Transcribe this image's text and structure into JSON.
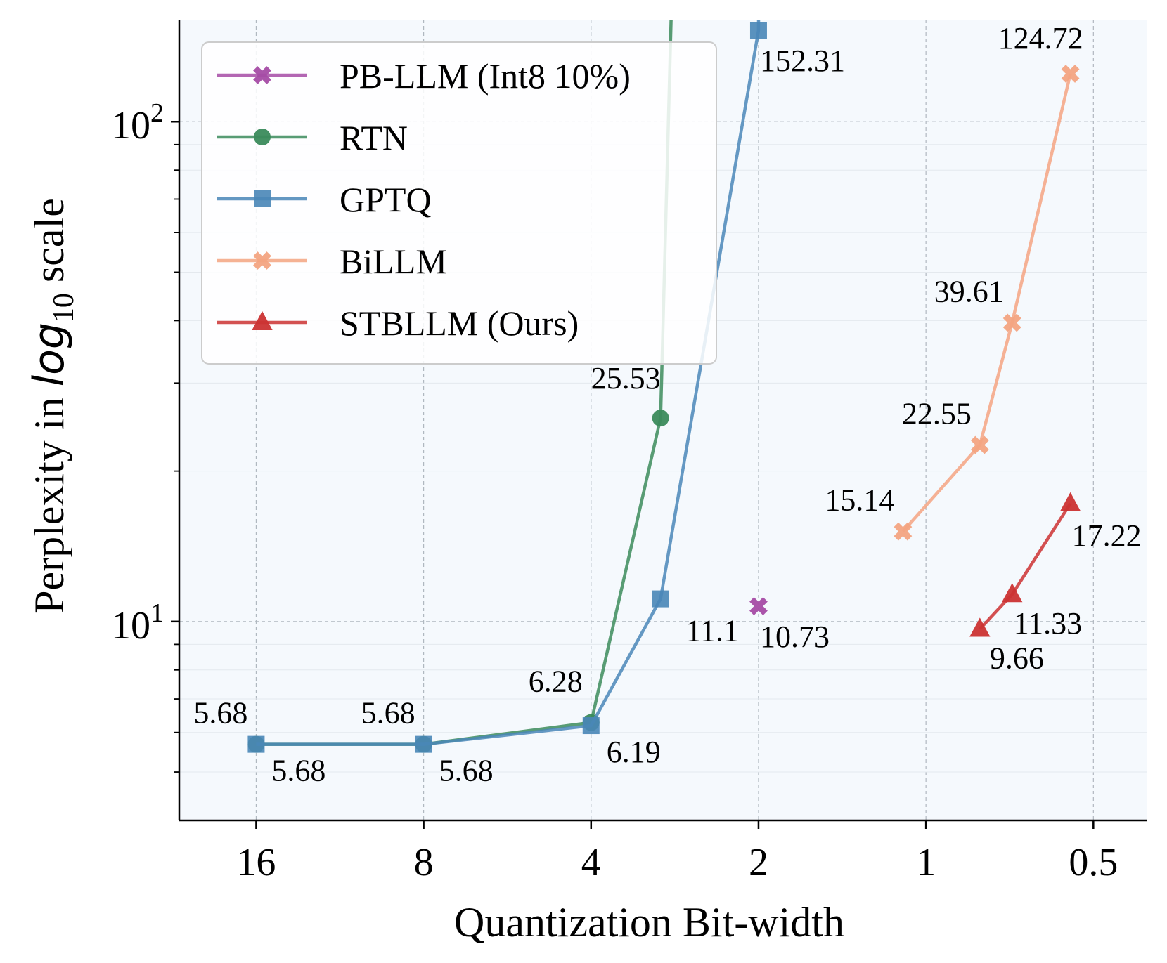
{
  "chart_data": {
    "type": "line",
    "xlabel": "Quantization Bit-width",
    "ylabel_prefix": "Perplexity in ",
    "ylabel_log": "log",
    "ylabel_sub": "10",
    "ylabel_suffix": " scale",
    "x_scale": "log2",
    "y_scale": "log10",
    "x_inverted": true,
    "xlim": [
      22,
      0.4
    ],
    "ylim": [
      4,
      160
    ],
    "x_ticks": [
      16,
      8,
      4,
      2,
      1,
      0.5
    ],
    "x_tick_labels": [
      "16",
      "8",
      "4",
      "2",
      "1",
      "0.5"
    ],
    "y_major_ticks": [
      10,
      100
    ],
    "y_tick_labels": [
      {
        "base": "10",
        "exp": "1"
      },
      {
        "base": "10",
        "exp": "2"
      }
    ],
    "grid": true,
    "background": "#f5f9fd",
    "legend_position": "top-left",
    "series": [
      {
        "name": "PB-LLM (Int8 10%)",
        "color": "#a64ca6",
        "marker": "x",
        "points": [
          {
            "x": 2,
            "y": 10.73
          }
        ]
      },
      {
        "name": "RTN",
        "color": "#3c8c5c",
        "marker": "circle",
        "points": [
          {
            "x": 16,
            "y": 5.68
          },
          {
            "x": 8,
            "y": 5.68
          },
          {
            "x": 4,
            "y": 6.28
          },
          {
            "x": 3,
            "y": 25.53
          },
          {
            "x": 2.75,
            "y": 1000
          }
        ],
        "unmarked_last": true
      },
      {
        "name": "GPTQ",
        "color": "#4a87b8",
        "marker": "square",
        "points": [
          {
            "x": 16,
            "y": 5.68
          },
          {
            "x": 8,
            "y": 5.68
          },
          {
            "x": 4,
            "y": 6.19
          },
          {
            "x": 3,
            "y": 11.1
          },
          {
            "x": 2,
            "y": 152.31
          },
          {
            "x": 1.99,
            "y": 1000
          }
        ],
        "unmarked_last": true
      },
      {
        "name": "BiLLM",
        "color": "#f4a582",
        "marker": "x",
        "points": [
          {
            "x": 1.1,
            "y": 15.14
          },
          {
            "x": 0.8,
            "y": 22.55
          },
          {
            "x": 0.7,
            "y": 39.61
          },
          {
            "x": 0.55,
            "y": 124.72
          }
        ]
      },
      {
        "name": "STBLLM (Ours)",
        "color": "#cc3333",
        "marker": "triangle",
        "points": [
          {
            "x": 0.8,
            "y": 9.66
          },
          {
            "x": 0.7,
            "y": 11.33
          },
          {
            "x": 0.55,
            "y": 17.22
          }
        ]
      }
    ],
    "annotations": [
      {
        "text": "5.68",
        "x": 16,
        "y": 5.68,
        "pos": "above-left"
      },
      {
        "text": "5.68",
        "x": 16,
        "y": 5.68,
        "pos": "below-right"
      },
      {
        "text": "5.68",
        "x": 8,
        "y": 5.68,
        "pos": "above-left"
      },
      {
        "text": "5.68",
        "x": 8,
        "y": 5.68,
        "pos": "below-right"
      },
      {
        "text": "6.28",
        "x": 4,
        "y": 6.28,
        "pos": "above-left"
      },
      {
        "text": "6.19",
        "x": 4,
        "y": 6.19,
        "pos": "below-right"
      },
      {
        "text": "25.53",
        "x": 3,
        "y": 25.53,
        "pos": "above-left"
      },
      {
        "text": "11.1",
        "x": 3,
        "y": 11.1,
        "pos": "below-right"
      },
      {
        "text": "10.73",
        "x": 2,
        "y": 10.73,
        "pos": "below-right"
      },
      {
        "text": "152.31",
        "x": 2,
        "y": 152.31,
        "pos": "below-right"
      },
      {
        "text": "15.14",
        "x": 1.1,
        "y": 15.14,
        "pos": "above-left"
      },
      {
        "text": "22.55",
        "x": 0.8,
        "y": 22.55,
        "pos": "above-left"
      },
      {
        "text": "39.61",
        "x": 0.7,
        "y": 39.61,
        "pos": "above-left"
      },
      {
        "text": "124.72",
        "x": 0.55,
        "y": 124.72,
        "pos": "above-left"
      },
      {
        "text": "9.66",
        "x": 0.8,
        "y": 9.66,
        "pos": "below-right"
      },
      {
        "text": "11.33",
        "x": 0.7,
        "y": 11.33,
        "pos": "below-right"
      },
      {
        "text": "17.22",
        "x": 0.55,
        "y": 17.22,
        "pos": "below-right"
      }
    ]
  }
}
